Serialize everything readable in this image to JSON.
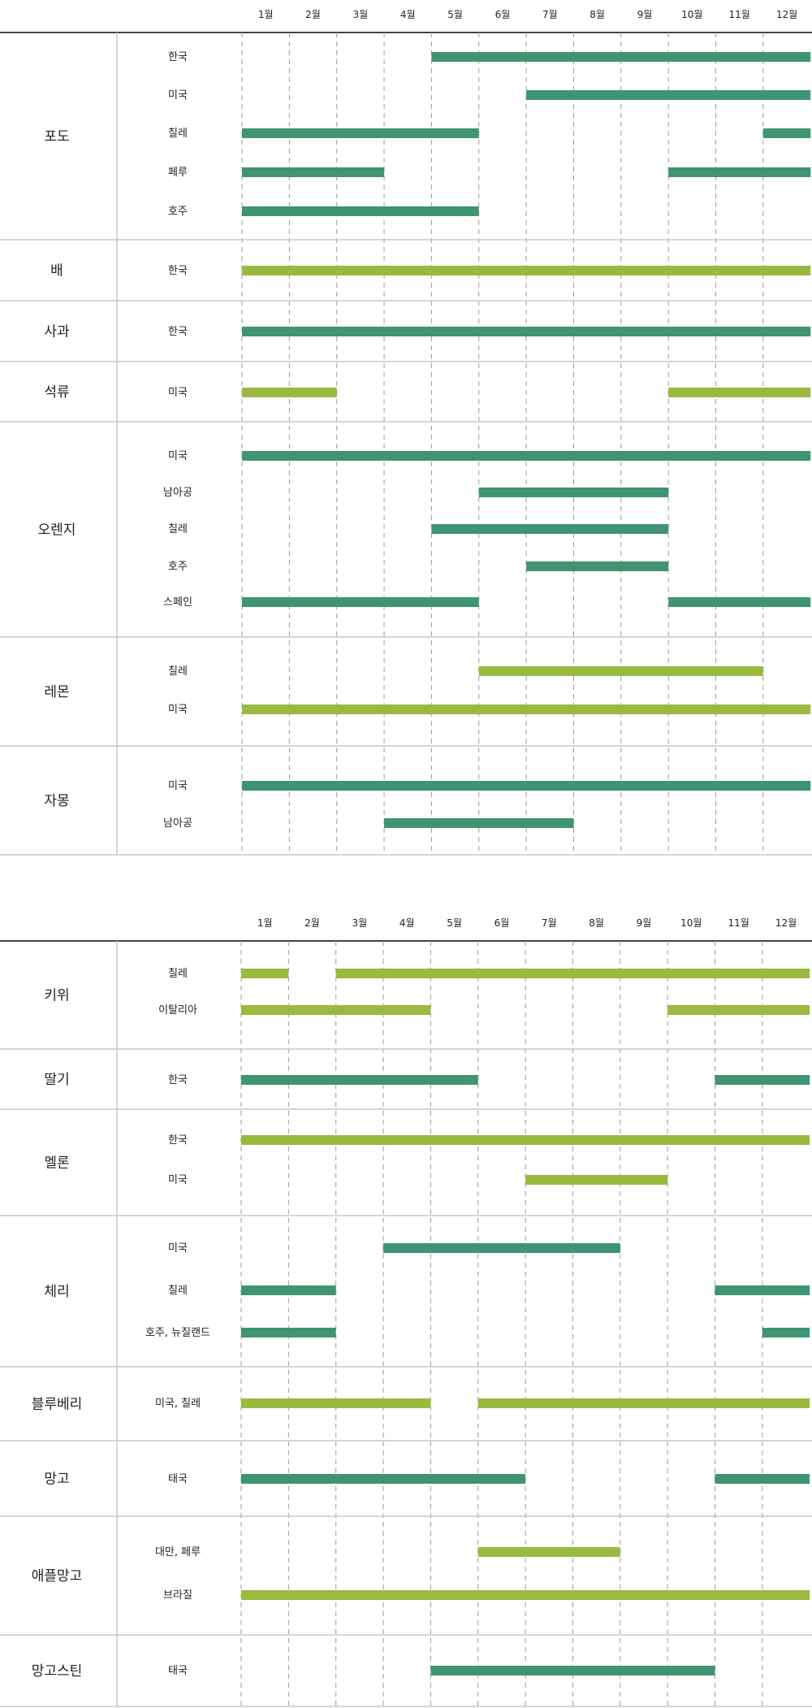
{
  "colors": {
    "dark_green": "#3f9471",
    "light_green": "#9ab93e",
    "grid_dashed": "#9a9a9a",
    "separator": "#c8c8c8",
    "header_rule": "#444444"
  },
  "months": [
    "1월",
    "2월",
    "3월",
    "4월",
    "5월",
    "6월",
    "7월",
    "8월",
    "9월",
    "10월",
    "11월",
    "12월"
  ],
  "chart_data": [
    {
      "type": "gantt",
      "x_unit": "month",
      "xlim": [
        1,
        13
      ],
      "categories": [
        {
          "fruit": "포도",
          "color": "dark_green",
          "rows": [
            {
              "origin": "한국",
              "ranges": [
                [
                  5,
                  13
                ]
              ]
            },
            {
              "origin": "미국",
              "ranges": [
                [
                  7,
                  13
                ]
              ]
            },
            {
              "origin": "칠레",
              "ranges": [
                [
                  1,
                  6
                ],
                [
                  12,
                  13
                ]
              ]
            },
            {
              "origin": "페루",
              "ranges": [
                [
                  1,
                  4
                ],
                [
                  10,
                  13
                ]
              ]
            },
            {
              "origin": "호주",
              "ranges": [
                [
                  1,
                  6
                ]
              ]
            }
          ]
        },
        {
          "fruit": "배",
          "color": "light_green",
          "rows": [
            {
              "origin": "한국",
              "ranges": [
                [
                  1,
                  13
                ]
              ]
            }
          ]
        },
        {
          "fruit": "사과",
          "color": "dark_green",
          "rows": [
            {
              "origin": "한국",
              "ranges": [
                [
                  1,
                  13
                ]
              ]
            }
          ]
        },
        {
          "fruit": "석류",
          "color": "light_green",
          "rows": [
            {
              "origin": "미국",
              "ranges": [
                [
                  1,
                  3
                ],
                [
                  10,
                  13
                ]
              ]
            }
          ]
        },
        {
          "fruit": "오렌지",
          "color": "dark_green",
          "rows": [
            {
              "origin": "미국",
              "ranges": [
                [
                  1,
                  13
                ]
              ]
            },
            {
              "origin": "남아공",
              "ranges": [
                [
                  6,
                  10
                ]
              ]
            },
            {
              "origin": "칠레",
              "ranges": [
                [
                  5,
                  10
                ]
              ]
            },
            {
              "origin": "호주",
              "ranges": [
                [
                  7,
                  10
                ]
              ]
            },
            {
              "origin": "스페인",
              "ranges": [
                [
                  1,
                  6
                ],
                [
                  10,
                  13
                ]
              ]
            }
          ]
        },
        {
          "fruit": "레몬",
          "color": "light_green",
          "rows": [
            {
              "origin": "칠레",
              "ranges": [
                [
                  6,
                  12
                ]
              ]
            },
            {
              "origin": "미국",
              "ranges": [
                [
                  1,
                  13
                ]
              ]
            }
          ]
        },
        {
          "fruit": "자몽",
          "color": "dark_green",
          "rows": [
            {
              "origin": "미국",
              "ranges": [
                [
                  1,
                  13
                ]
              ]
            },
            {
              "origin": "남아공",
              "ranges": [
                [
                  4,
                  8
                ]
              ]
            }
          ]
        }
      ]
    },
    {
      "type": "gantt",
      "x_unit": "month",
      "xlim": [
        1,
        13
      ],
      "categories": [
        {
          "fruit": "키위",
          "color": "light_green",
          "rows": [
            {
              "origin": "칠레",
              "ranges": [
                [
                  1,
                  2
                ],
                [
                  3,
                  13
                ]
              ]
            },
            {
              "origin": "이탈리아",
              "ranges": [
                [
                  1,
                  5
                ],
                [
                  10,
                  13
                ]
              ]
            }
          ]
        },
        {
          "fruit": "딸기",
          "color": "dark_green",
          "rows": [
            {
              "origin": "한국",
              "ranges": [
                [
                  1,
                  6
                ],
                [
                  11,
                  13
                ]
              ]
            }
          ]
        },
        {
          "fruit": "멜론",
          "color": "light_green",
          "rows": [
            {
              "origin": "한국",
              "ranges": [
                [
                  1,
                  13
                ]
              ]
            },
            {
              "origin": "미국",
              "ranges": [
                [
                  7,
                  10
                ]
              ]
            }
          ]
        },
        {
          "fruit": "체리",
          "color": "dark_green",
          "rows": [
            {
              "origin": "미국",
              "ranges": [
                [
                  4,
                  9
                ]
              ]
            },
            {
              "origin": "칠레",
              "ranges": [
                [
                  1,
                  3
                ],
                [
                  11,
                  13
                ]
              ]
            },
            {
              "origin": "호주, 뉴질랜드",
              "ranges": [
                [
                  1,
                  3
                ],
                [
                  12,
                  13
                ]
              ]
            }
          ]
        },
        {
          "fruit": "블루베리",
          "color": "light_green",
          "rows": [
            {
              "origin": "미국, 칠레",
              "ranges": [
                [
                  1,
                  5
                ],
                [
                  6,
                  13
                ]
              ]
            }
          ]
        },
        {
          "fruit": "망고",
          "color": "dark_green",
          "rows": [
            {
              "origin": "태국",
              "ranges": [
                [
                  1,
                  7
                ],
                [
                  11,
                  13
                ]
              ]
            }
          ]
        },
        {
          "fruit": "애플망고",
          "color": "light_green",
          "rows": [
            {
              "origin": "대만, 페루",
              "ranges": [
                [
                  6,
                  9
                ]
              ]
            },
            {
              "origin": "브라질",
              "ranges": [
                [
                  1,
                  13
                ]
              ]
            }
          ]
        },
        {
          "fruit": "망고스틴",
          "color": "dark_green",
          "rows": [
            {
              "origin": "태국",
              "ranges": [
                [
                  5,
                  11
                ]
              ]
            }
          ]
        }
      ]
    }
  ]
}
